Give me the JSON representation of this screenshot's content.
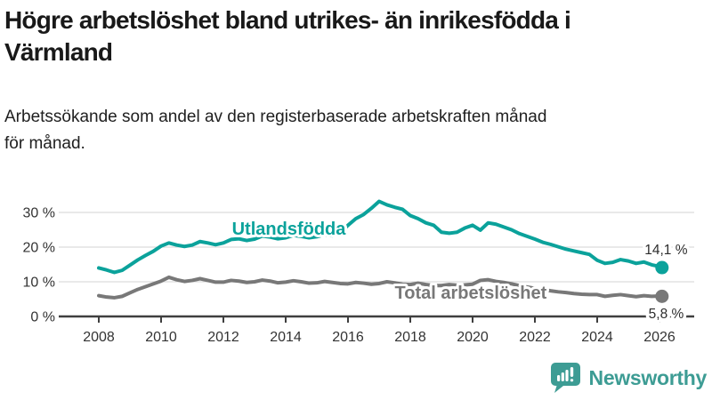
{
  "title": {
    "text": "Högre arbetslöshet bland utrikes- än inrikesfödda i Värmland",
    "lines": [
      "Högre arbetslöshet bland utrikes- än inrikesfödda i",
      "Värmland"
    ]
  },
  "subtitle": {
    "text": "Arbetssökande som andel av den registerbaserade arbetskraften månad för månad.",
    "lines": [
      "Arbetssökande som andel av den registerbaserade arbetskraften månad",
      "för månad."
    ]
  },
  "branding": {
    "logo_text": "Newsworthy",
    "logo_icon": "bar-chart-speech-bubble-icon",
    "color": "#3d9c94"
  },
  "chart_data": {
    "type": "line",
    "title": "Högre arbetslöshet bland utrikes- än inrikesfödda i Värmland",
    "xlabel": "",
    "ylabel": "",
    "x_domain": [
      2008,
      2026.3
    ],
    "ylim": [
      0,
      36
    ],
    "grid": true,
    "grid_values": [
      10,
      20,
      30
    ],
    "x_ticks": [
      2008,
      2010,
      2012,
      2014,
      2016,
      2018,
      2020,
      2022,
      2024,
      2026
    ],
    "x_tick_labels": [
      "2008",
      "2010",
      "2012",
      "2014",
      "2016",
      "2018",
      "2020",
      "2022",
      "2024",
      "2026"
    ],
    "y_ticks": [
      {
        "value": 0,
        "label": "0 %"
      },
      {
        "value": 10,
        "label": "10 %"
      },
      {
        "value": 20,
        "label": "20 %"
      },
      {
        "value": 30,
        "label": "30 %"
      }
    ],
    "series": [
      {
        "id": "utlandsfodda",
        "name": "Utlandsfödda",
        "color": "#0ba29b",
        "x_start": 2008.0,
        "x_step_years": 0.25,
        "values": [
          14.0,
          13.4,
          12.7,
          13.3,
          14.8,
          16.3,
          17.6,
          18.8,
          20.3,
          21.2,
          20.6,
          20.2,
          20.6,
          21.6,
          21.2,
          20.7,
          21.2,
          22.2,
          22.4,
          21.9,
          22.3,
          23.2,
          22.9,
          22.4,
          22.7,
          23.4,
          23.1,
          22.7,
          23.0,
          23.6,
          23.3,
          24.2,
          26.3,
          28.2,
          29.4,
          31.2,
          33.2,
          32.2,
          31.5,
          30.9,
          29.1,
          28.2,
          27.0,
          26.3,
          24.3,
          24.0,
          24.3,
          25.5,
          26.3,
          24.9,
          27.0,
          26.6,
          25.8,
          25.0,
          23.9,
          23.1,
          22.3,
          21.4,
          20.8,
          20.1,
          19.4,
          18.9,
          18.4,
          17.9,
          16.2,
          15.3,
          15.6,
          16.4,
          16.0,
          15.3,
          15.7,
          14.9,
          14.4
        ],
        "end_point": {
          "x": 2026.08,
          "value": 14.1
        },
        "end_label": "14,1 %"
      },
      {
        "id": "total-arbetsloshet",
        "name": "Total arbetslöshet",
        "color": "#787878",
        "x_start": 2008.0,
        "x_step_years": 0.25,
        "values": [
          6.0,
          5.6,
          5.4,
          5.8,
          6.8,
          7.8,
          8.6,
          9.4,
          10.2,
          11.3,
          10.6,
          10.1,
          10.4,
          10.9,
          10.4,
          9.9,
          9.9,
          10.4,
          10.2,
          9.8,
          10.0,
          10.5,
          10.2,
          9.7,
          9.9,
          10.3,
          10.0,
          9.6,
          9.7,
          10.1,
          9.8,
          9.5,
          9.4,
          9.8,
          9.6,
          9.3,
          9.5,
          10.0,
          9.7,
          9.3,
          9.2,
          9.6,
          9.2,
          8.9,
          8.9,
          9.2,
          9.0,
          9.1,
          9.3,
          10.4,
          10.6,
          10.1,
          9.8,
          9.4,
          8.9,
          8.5,
          8.1,
          7.8,
          7.4,
          7.1,
          6.9,
          6.6,
          6.4,
          6.3,
          6.3,
          5.8,
          6.1,
          6.3,
          6.0,
          5.7,
          6.0,
          5.8,
          5.9
        ],
        "end_point": {
          "x": 2026.08,
          "value": 5.8
        },
        "end_label": "5,8 %"
      }
    ],
    "annotations": [
      {
        "kind": "series-label",
        "text": "Utlandsfödda",
        "x": 2014.1,
        "y": 23.6,
        "color": "#0ba29b",
        "anchor": "middle"
      },
      {
        "kind": "series-label",
        "text": "Total arbetslöshet",
        "x": 2019.94,
        "y": 5.1,
        "color": "#787878",
        "anchor": "middle"
      },
      {
        "kind": "value-label",
        "text": "14,1 %",
        "x": 2026.9,
        "y": 17.95,
        "color": "#2d2d2d",
        "anchor": "end"
      },
      {
        "kind": "value-label",
        "text": "5,8 %",
        "x": 2026.78,
        "y": -0.55,
        "color": "#2d2d2d",
        "anchor": "end"
      }
    ],
    "legend_position": "inline-labels",
    "colors": {
      "accent_teal": "#0ba29b",
      "line_gray": "#787878",
      "gridline": "#dcdcdc",
      "axis": "#3f3f3f"
    }
  }
}
